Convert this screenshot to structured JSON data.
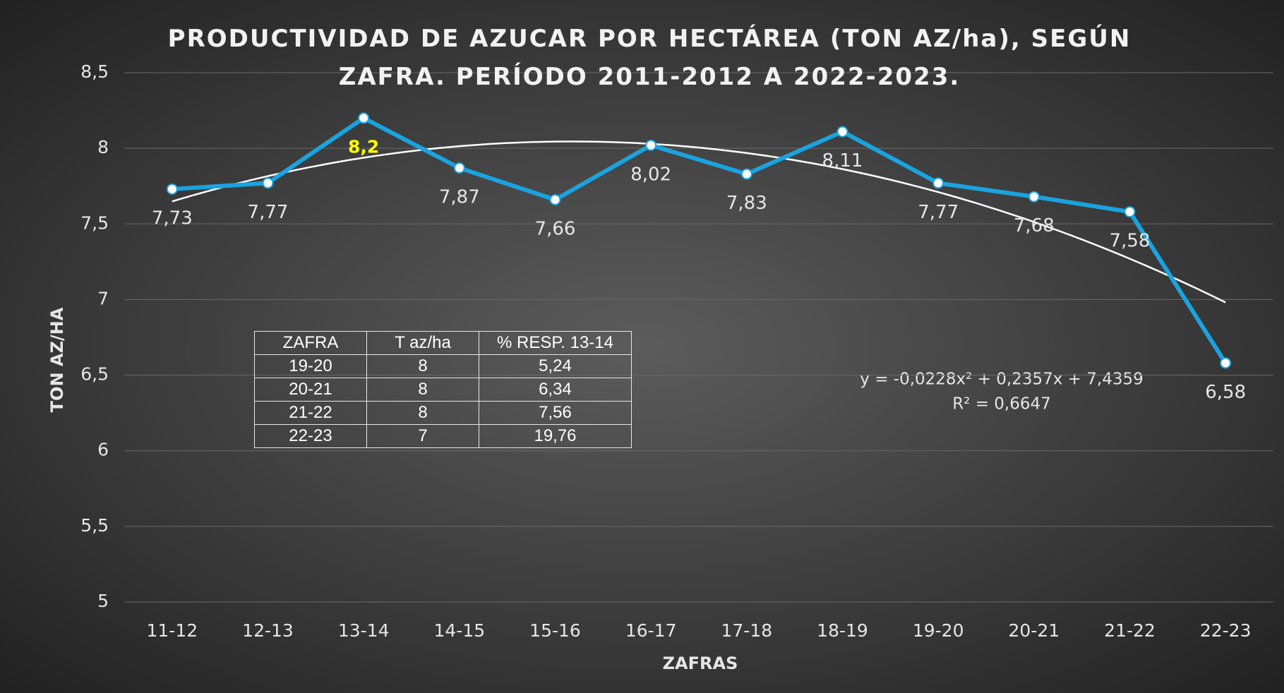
{
  "chart_data": {
    "type": "line",
    "title": "PRODUCTIVIDAD DE AZUCAR POR HECTÁREA (TON AZ/ha), SEGÚN ZAFRA. PERÍODO 2011-2012 A 2022-2023.",
    "x_label": "ZAFRAS",
    "y_label": "TON AZ/HA",
    "categories": [
      "11-12",
      "12-13",
      "13-14",
      "14-15",
      "15-16",
      "16-17",
      "17-18",
      "18-19",
      "19-20",
      "20-21",
      "21-22",
      "22-23"
    ],
    "series": [
      {
        "name": "TON AZ/HA",
        "color": "#1aa3df",
        "values": [
          7.73,
          7.77,
          8.2,
          7.87,
          7.66,
          8.02,
          7.83,
          8.11,
          7.77,
          7.68,
          7.58,
          6.58
        ],
        "value_labels": [
          "7,73",
          "7,77",
          "8,2",
          "7,87",
          "7,66",
          "8,02",
          "7,83",
          "8,11",
          "7,77",
          "7,68",
          "7,58",
          "6,58"
        ]
      }
    ],
    "ylim": [
      5,
      8.5
    ],
    "yticks": [
      5,
      {
        "value": 5.5,
        "label": "5,5"
      },
      6,
      {
        "value": 6.5,
        "label": "6,5"
      },
      7,
      {
        "value": 7.5,
        "label": "7,5"
      },
      8,
      {
        "value": 8.5,
        "label": "8,5"
      }
    ],
    "grid": true,
    "trendline": {
      "label": "y = -0,0228x² + 0,2357x + 7,4359",
      "r2_label": "R² = 0,6647",
      "coefficients": [
        -0.0228,
        0.2357,
        7.4359
      ],
      "color": "#ffffff"
    }
  },
  "table": {
    "header": [
      "ZAFRA",
      "T az/ha",
      "% RESP. 13-14"
    ],
    "rows": [
      [
        "19-20",
        "8",
        "5,24"
      ],
      [
        "20-21",
        "8",
        "6,34"
      ],
      [
        "21-22",
        "8",
        "7,56"
      ],
      [
        "22-23",
        "7",
        "19,76"
      ]
    ]
  }
}
